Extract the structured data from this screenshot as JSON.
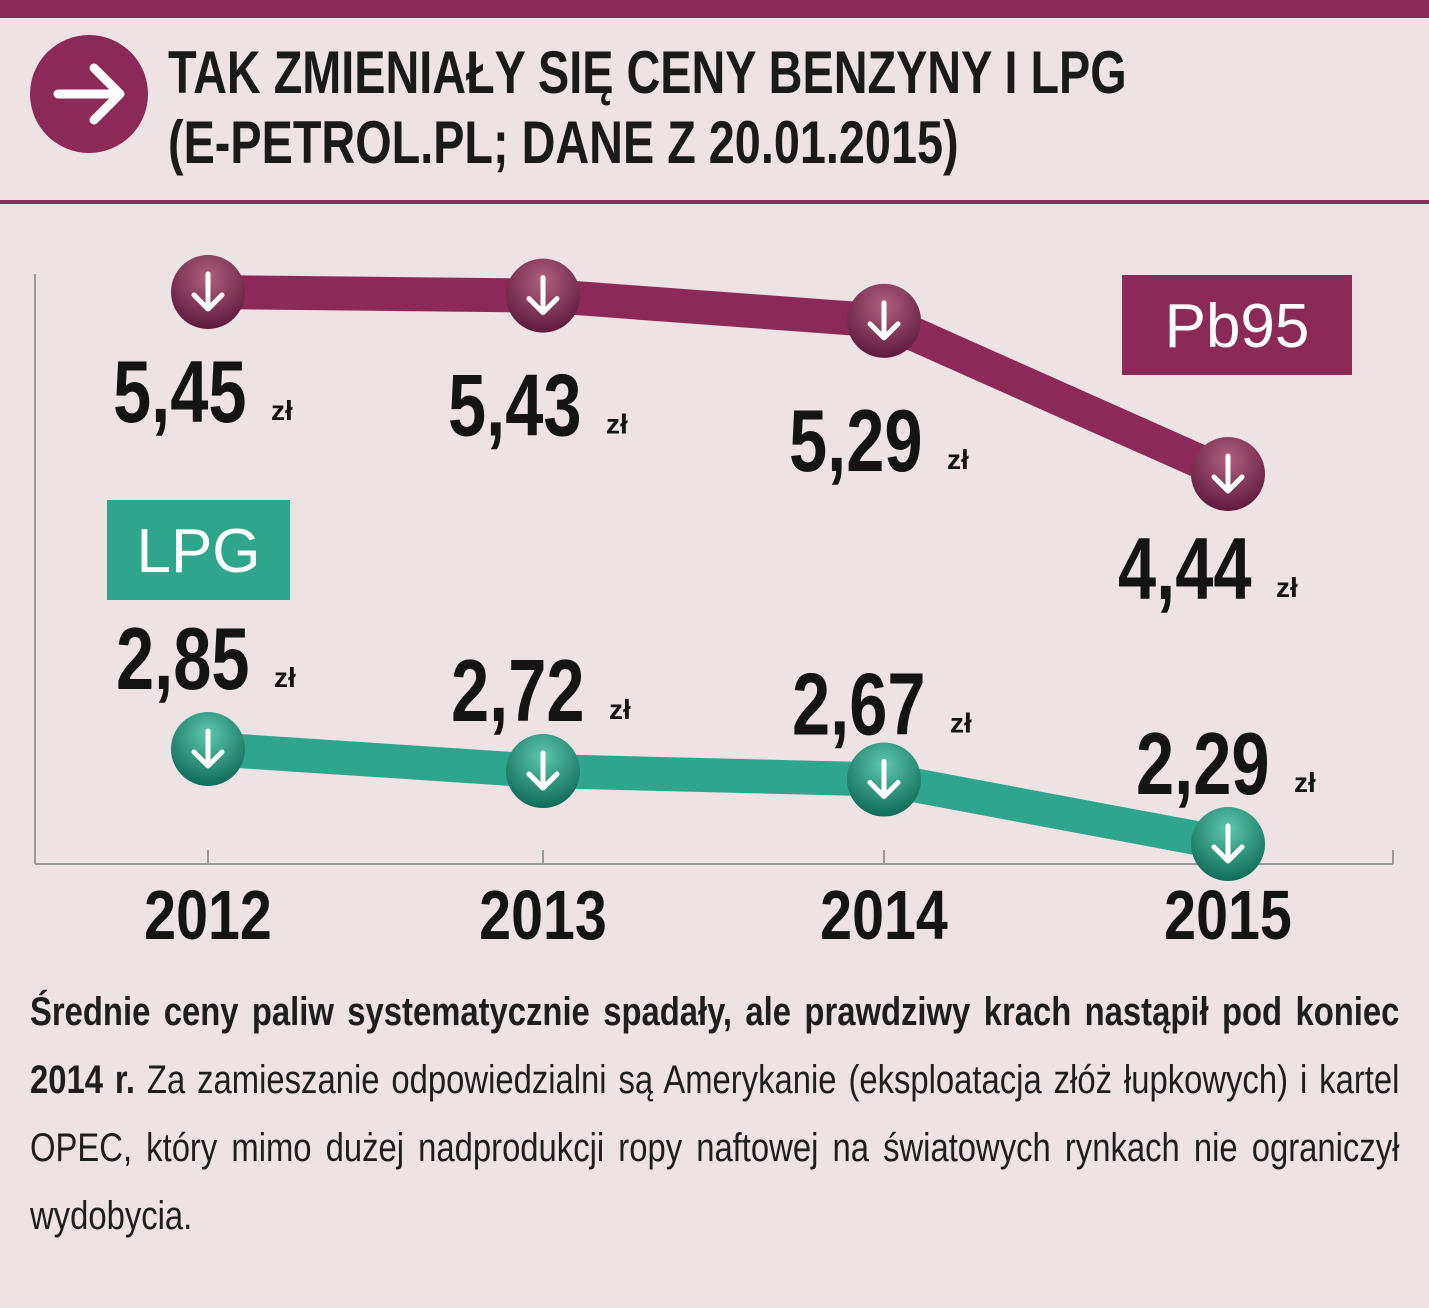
{
  "header": {
    "title_line1": "TAK ZMIENIAŁY SIĘ CENY BENZYNY I LPG",
    "title_line2": "(E-PETROL.PL; DANE Z 20.01.2015)",
    "icon": "arrow-right-icon"
  },
  "colors": {
    "accent": "#8b2a57",
    "lpg": "#2fa58c",
    "background": "#ede2e4",
    "text": "#1a1a1a"
  },
  "chart_data": {
    "type": "line",
    "categories": [
      "2012",
      "2013",
      "2014",
      "2015"
    ],
    "unit": "zł",
    "series": [
      {
        "name": "Pb95",
        "values": [
          5.45,
          5.43,
          5.29,
          4.44
        ],
        "labels": [
          "5,45",
          "5,43",
          "5,29",
          "4,44"
        ],
        "color": "#8b2a57"
      },
      {
        "name": "LPG",
        "values": [
          2.85,
          2.72,
          2.67,
          2.29
        ],
        "labels": [
          "2,85",
          "2,72",
          "2,67",
          "2,29"
        ],
        "color": "#2fa58c"
      }
    ],
    "point_icon": "arrow-down-icon",
    "grid": false
  },
  "caption": {
    "bold": "Średnie ceny paliw systematycznie spadały, ale prawdziwy krach nastąpił pod koniec 2014 r.",
    "regular": " Za zamieszanie odpowiedzialni są Amerykanie (eksploatacja złóż łupkowych) i kartel OPEC, który mimo dużej nadprodukcji ropy naftowej na światowych rynkach nie ograniczył wydobycia."
  }
}
